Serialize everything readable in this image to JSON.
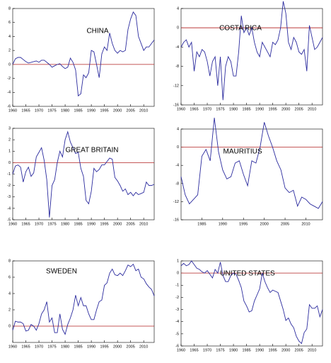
{
  "chart_data": [
    {
      "type": "line",
      "title": "CHINA",
      "color": "#2b2b9e",
      "reference_line": {
        "value": 0,
        "color": "#b22222"
      },
      "x": [
        1960,
        1961,
        1962,
        1963,
        1964,
        1965,
        1966,
        1967,
        1968,
        1969,
        1970,
        1971,
        1972,
        1973,
        1974,
        1975,
        1976,
        1977,
        1978,
        1979,
        1980,
        1981,
        1982,
        1983,
        1984,
        1985,
        1986,
        1987,
        1988,
        1989,
        1990,
        1991,
        1992,
        1993,
        1994,
        1995,
        1996,
        1997,
        1998,
        1999,
        2000,
        2001,
        2002,
        2003,
        2004,
        2005,
        2006,
        2007,
        2008,
        2009,
        2010,
        2011,
        2012,
        2013,
        2014
      ],
      "values": [
        0,
        0.8,
        1.0,
        1.0,
        0.7,
        0.4,
        0.2,
        0.3,
        0.4,
        0.5,
        0.3,
        0.6,
        0.6,
        0.3,
        0.0,
        -0.4,
        -0.2,
        0.0,
        0.1,
        -0.3,
        -0.6,
        -0.4,
        0.9,
        0.3,
        -0.8,
        -4.5,
        -4.2,
        -1.5,
        -1.9,
        -1.2,
        2.0,
        1.8,
        0.0,
        -1.9,
        1.5,
        2.5,
        2.0,
        4.5,
        3.0,
        2.0,
        1.6,
        2.0,
        1.8,
        2.0,
        5.0,
        6.5,
        7.5,
        7.0,
        4.0,
        3.0,
        2.0,
        2.5,
        2.5,
        3.0,
        3.5
      ],
      "xlim": [
        1960,
        2014
      ],
      "xticks": [
        1960,
        1965,
        1970,
        1975,
        1980,
        1985,
        1990,
        1995,
        2000,
        2005,
        2010
      ],
      "ylim": [
        -6,
        8
      ],
      "yticks": [
        -6,
        -4,
        -2,
        0,
        2,
        4,
        6,
        8
      ]
    },
    {
      "type": "line",
      "title": "COSTA RICA",
      "color": "#2b2b9e",
      "reference_line": {
        "value": 0,
        "color": "#b22222"
      },
      "x": [
        1960,
        1961,
        1962,
        1963,
        1964,
        1965,
        1966,
        1967,
        1968,
        1969,
        1970,
        1971,
        1972,
        1973,
        1974,
        1975,
        1976,
        1977,
        1978,
        1979,
        1980,
        1981,
        1982,
        1983,
        1984,
        1985,
        1986,
        1987,
        1988,
        1989,
        1990,
        1991,
        1992,
        1993,
        1994,
        1995,
        1996,
        1997,
        1998,
        1999,
        2000,
        2001,
        2002,
        2003,
        2004,
        2005,
        2006,
        2007,
        2008,
        2009,
        2010,
        2011,
        2012,
        2013,
        2014
      ],
      "values": [
        -4,
        -3,
        -2.5,
        -4,
        -3,
        -9,
        -5,
        -6,
        -4.5,
        -5,
        -7,
        -10,
        -7,
        -6,
        -12,
        -6,
        -15,
        -8,
        -6,
        -7,
        -10,
        -10,
        -5,
        2.5,
        -1,
        0,
        -1.5,
        0,
        -3,
        -5,
        -6,
        -3,
        -4,
        -5,
        -6,
        -3,
        -3.5,
        -2.5,
        0,
        5.5,
        3,
        -3,
        -4.5,
        -2,
        -3,
        -5,
        -5.5,
        -4.5,
        -9,
        0.5,
        -2,
        -4.5,
        -4,
        -3,
        -2
      ],
      "xlim": [
        1960,
        2014
      ],
      "xticks": [
        1960,
        1965,
        1970,
        1975,
        1980,
        1985,
        1990,
        1995,
        2000,
        2005,
        2010
      ],
      "ylim": [
        -16,
        4
      ],
      "yticks": [
        -16,
        -12,
        -8,
        -4,
        0,
        4
      ]
    },
    {
      "type": "line",
      "title": "GREAT BRITAIN",
      "color": "#2b2b9e",
      "reference_line": {
        "value": 0,
        "color": "#b22222"
      },
      "x": [
        1960,
        1961,
        1962,
        1963,
        1964,
        1965,
        1966,
        1967,
        1968,
        1969,
        1970,
        1971,
        1972,
        1973,
        1974,
        1975,
        1976,
        1977,
        1978,
        1979,
        1980,
        1981,
        1982,
        1983,
        1984,
        1985,
        1986,
        1987,
        1988,
        1989,
        1990,
        1991,
        1992,
        1993,
        1994,
        1995,
        1996,
        1997,
        1998,
        1999,
        2000,
        2001,
        2002,
        2003,
        2004,
        2005,
        2006,
        2007,
        2008,
        2009,
        2010,
        2011,
        2012,
        2013,
        2014
      ],
      "values": [
        -1,
        -0.3,
        -0.2,
        -0.4,
        -1.7,
        -0.8,
        -0.4,
        -1.2,
        -0.9,
        0.5,
        0.9,
        1.3,
        0.2,
        -1.5,
        -4.8,
        -2.0,
        -1.5,
        0,
        1,
        0.5,
        2,
        2.7,
        1.8,
        1.3,
        0.8,
        0.9,
        -0.5,
        -1.2,
        -3.3,
        -3.6,
        -2.5,
        -0.5,
        -0.8,
        -0.6,
        -0.2,
        -0.2,
        0.1,
        0.4,
        0.3,
        -1.3,
        -1.6,
        -2.0,
        -2.5,
        -2.3,
        -2.8,
        -2.6,
        -2.9,
        -2.6,
        -2.8,
        -2.7,
        -2.6,
        -1.7,
        -2.0,
        -2.0,
        -1.9
      ],
      "xlim": [
        1960,
        2014
      ],
      "xticks": [
        1960,
        1965,
        1970,
        1975,
        1980,
        1985,
        1990,
        1995,
        2000,
        2005,
        2010
      ],
      "ylim": [
        -5,
        3
      ],
      "yticks": [
        -5,
        -4,
        -3,
        -2,
        -1,
        0,
        1,
        2,
        3
      ]
    },
    {
      "type": "line",
      "title": "MAURITIUS",
      "color": "#2b2b9e",
      "reference_line": {
        "value": 0,
        "color": "#b22222"
      },
      "x": [
        1980,
        1981,
        1982,
        1983,
        1984,
        1985,
        1986,
        1987,
        1988,
        1989,
        1990,
        1991,
        1992,
        1993,
        1994,
        1995,
        1996,
        1997,
        1998,
        1999,
        2000,
        2001,
        2002,
        2003,
        2004,
        2005,
        2006,
        2007,
        2008,
        2009,
        2010,
        2011,
        2012,
        2013,
        2014
      ],
      "values": [
        -6.5,
        -10.5,
        -12.5,
        -11.5,
        -10.5,
        -2,
        -0.5,
        -3,
        6.5,
        -1,
        -5,
        -7,
        -6.5,
        -3.5,
        -3,
        -6,
        -8.5,
        -3,
        -3.5,
        0,
        5.5,
        2.5,
        0,
        -3,
        -5,
        -9,
        -10,
        -9.5,
        -13,
        -11,
        -11.5,
        -12.5,
        -13,
        -13.5,
        -12
      ],
      "xlim": [
        1980,
        2014
      ],
      "xticks": [
        1985,
        1990,
        1995,
        2000,
        2005,
        2010
      ],
      "ylim": [
        -16,
        4
      ],
      "yticks": [
        -16,
        -12,
        -8,
        -4,
        0,
        4
      ]
    },
    {
      "type": "line",
      "title": "SWEDEN",
      "color": "#2b2b9e",
      "reference_line": {
        "value": 0,
        "color": "#b22222"
      },
      "x": [
        1960,
        1961,
        1962,
        1963,
        1964,
        1965,
        1966,
        1967,
        1968,
        1969,
        1970,
        1971,
        1972,
        1973,
        1974,
        1975,
        1976,
        1977,
        1978,
        1979,
        1980,
        1981,
        1982,
        1983,
        1984,
        1985,
        1986,
        1987,
        1988,
        1989,
        1990,
        1991,
        1992,
        1993,
        1994,
        1995,
        1996,
        1997,
        1998,
        1999,
        2000,
        2001,
        2002,
        2003,
        2004,
        2005,
        2006,
        2007,
        2008,
        2009,
        2010,
        2011,
        2012,
        2013,
        2014
      ],
      "values": [
        -0.5,
        0.6,
        0.5,
        0.5,
        0.3,
        -0.6,
        -0.5,
        0.2,
        0.0,
        -0.5,
        0.3,
        1.5,
        2.0,
        3.0,
        0.5,
        1.0,
        -0.8,
        -0.8,
        1.5,
        -0.4,
        -1.0,
        0.2,
        1.0,
        2.0,
        3.8,
        2.5,
        3.5,
        2.5,
        2.5,
        1.5,
        0.8,
        0.8,
        2.0,
        3.0,
        3.2,
        5.0,
        5.3,
        6.5,
        7.0,
        6.3,
        6.2,
        6.5,
        6.2,
        6.8,
        7.5,
        7.3,
        7.6,
        6.8,
        7.0,
        6.0,
        5.8,
        5.2,
        4.8,
        4.5,
        3.7
      ],
      "xlim": [
        1960,
        2014
      ],
      "xticks": [
        1960,
        1965,
        1970,
        1975,
        1980,
        1985,
        1990,
        1995,
        2000,
        2005,
        2010
      ],
      "ylim": [
        -2,
        8
      ],
      "yticks": [
        0,
        2,
        4,
        6,
        8
      ]
    },
    {
      "type": "line",
      "title": "UNITED STATES",
      "color": "#2b2b9e",
      "reference_line": {
        "value": 0,
        "color": "#b22222"
      },
      "x": [
        1960,
        1961,
        1962,
        1963,
        1964,
        1965,
        1966,
        1967,
        1968,
        1969,
        1970,
        1971,
        1972,
        1973,
        1974,
        1975,
        1976,
        1977,
        1978,
        1979,
        1980,
        1981,
        1982,
        1983,
        1984,
        1985,
        1986,
        1987,
        1988,
        1989,
        1990,
        1991,
        1992,
        1993,
        1994,
        1995,
        1996,
        1997,
        1998,
        1999,
        2000,
        2001,
        2002,
        2003,
        2004,
        2005,
        2006,
        2007,
        2008,
        2009,
        2010,
        2011,
        2012,
        2013,
        2014
      ],
      "values": [
        0.6,
        0.8,
        0.6,
        0.7,
        1.0,
        0.7,
        0.4,
        0.3,
        0.1,
        0.0,
        0.2,
        -0.1,
        -0.4,
        0.3,
        0.0,
        0.9,
        -0.2,
        -0.7,
        -0.7,
        -0.2,
        0.0,
        -0.1,
        -0.6,
        -1.2,
        -2.3,
        -2.7,
        -3.2,
        -3.1,
        -2.3,
        -1.8,
        -1.3,
        0.0,
        -0.7,
        -1.2,
        -1.6,
        -1.4,
        -1.5,
        -1.6,
        -2.3,
        -3.0,
        -3.9,
        -3.7,
        -4.2,
        -4.5,
        -5.2,
        -5.6,
        -5.8,
        -4.9,
        -4.6,
        -2.6,
        -2.9,
        -2.9,
        -2.7,
        -3.6,
        -3.0
      ],
      "xlim": [
        1960,
        2014
      ],
      "xticks": [
        1960,
        1965,
        1970,
        1975,
        1980,
        1985,
        1990,
        1995,
        2000,
        2005,
        2010
      ],
      "ylim": [
        -6,
        1
      ],
      "yticks": [
        -6,
        -5,
        -4,
        -3,
        -2,
        -1,
        0,
        1
      ]
    }
  ]
}
